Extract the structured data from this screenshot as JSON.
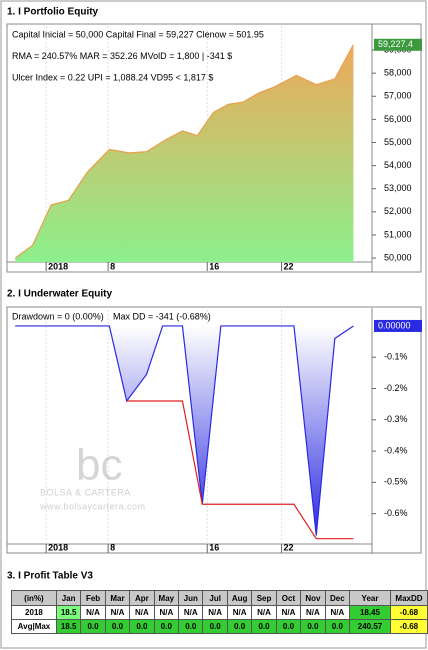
{
  "chart_data": [
    {
      "type": "area",
      "title": "1. I Portfolio Equity",
      "annotations": [
        "Capital Inicial = 50,000   Capital Final = 59,227   Clenow = 501.95",
        "RMA = 240.57%   MAR = 352.26   MVolD = 1,800 | -341 $",
        "Ulcer Index = 0.22   UPI = 1,088.24   VD95 < 1,817 $"
      ],
      "x": [
        0.5,
        1.9,
        3.4,
        4.8,
        6.3,
        8.1,
        9.7,
        11.1,
        12.6,
        14.0,
        15.2,
        16.5,
        17.7,
        18.9,
        20.2,
        21.4,
        23.2,
        24.8,
        26.3,
        27.8
      ],
      "values": [
        50000,
        50550,
        52300,
        52500,
        53700,
        54700,
        54550,
        54600,
        55100,
        55500,
        55300,
        56300,
        56650,
        56750,
        57150,
        57400,
        57900,
        57500,
        57750,
        59227.4
      ],
      "value_labels": [
        null,
        null,
        null,
        null,
        null,
        null,
        null,
        null,
        null,
        null,
        null,
        null,
        null,
        null,
        null,
        null,
        null,
        null,
        null,
        "59,227.4"
      ],
      "color": "#e8a04c",
      "label_color": "#3c9a3c",
      "xlim": [
        0,
        29.3
      ],
      "xticks": [
        {
          "value": 3,
          "label": "2018"
        },
        8,
        16,
        22
      ],
      "ylim": [
        49830,
        60040
      ],
      "yticks": [
        {
          "value": 50000,
          "label": "50,000"
        },
        {
          "value": 51000,
          "label": "51,000"
        },
        {
          "value": 52000,
          "label": "52,000"
        },
        {
          "value": 53000,
          "label": "53,000"
        },
        {
          "value": 54000,
          "label": "54,000"
        },
        {
          "value": 55000,
          "label": "55,000"
        },
        {
          "value": 56000,
          "label": "56,000"
        },
        {
          "value": 57000,
          "label": "57,000"
        },
        {
          "value": 58000,
          "label": "58,000"
        },
        {
          "value": 59000,
          "label": "59,000"
        }
      ],
      "grid": "x"
    },
    {
      "type": "line",
      "title": "2. I Underwater Equity",
      "x": [
        0.5,
        8.1,
        9.5,
        11.1,
        12.4,
        14.0,
        15.6,
        17.1,
        23.0,
        24.8,
        26.3,
        27.8
      ],
      "series": [
        {
          "name": "Drawdown = 0 (0.00%)",
          "color": "#2a2ae0",
          "fill": true,
          "values": [
            0,
            0,
            -0.24,
            -0.155,
            0,
            0,
            -0.57,
            0,
            0,
            -0.67,
            -0.04,
            0
          ],
          "value_labels": [
            null,
            null,
            null,
            null,
            null,
            null,
            null,
            null,
            null,
            null,
            null,
            "0.00000"
          ]
        },
        {
          "name": "Max DD = -341 (-0.68%)",
          "color": "#e02020",
          "values": [
            null,
            null,
            -0.24,
            -0.24,
            -0.24,
            -0.24,
            -0.57,
            -0.57,
            -0.57,
            -0.68,
            -0.68,
            -0.68
          ]
        }
      ],
      "watermark": [
        "bc",
        "BOLSA & CARTERA",
        "www.bolsaycartera.com"
      ],
      "xlim": [
        0,
        29.3
      ],
      "xticks": [
        {
          "value": 3,
          "label": "2018"
        },
        8,
        16,
        22
      ],
      "ylim": [
        -0.697,
        0.051
      ],
      "yticks": [
        {
          "value": -0.1,
          "label": "-0.1%"
        },
        {
          "value": -0.2,
          "label": "-0.2%"
        },
        {
          "value": -0.3,
          "label": "-0.3%"
        },
        {
          "value": -0.4,
          "label": "-0.4%"
        },
        {
          "value": -0.5,
          "label": "-0.5%"
        },
        {
          "value": -0.6,
          "label": "-0.6%"
        }
      ],
      "grid": "x"
    }
  ],
  "table": {
    "title": "3. I Profit Table V3",
    "header": [
      "(in%)",
      "Jan",
      "Feb",
      "Mar",
      "Apr",
      "May",
      "Jun",
      "Jul",
      "Aug",
      "Sep",
      "Oct",
      "Nov",
      "Dec",
      "Year",
      "MaxDD"
    ],
    "rows": [
      [
        "2018",
        "18.5",
        "N/A",
        "N/A",
        "N/A",
        "N/A",
        "N/A",
        "N/A",
        "N/A",
        "N/A",
        "N/A",
        "N/A",
        "N/A",
        "18.45",
        "-0.68"
      ],
      [
        "Avg|Max",
        "18.5",
        "0.0",
        "0.0",
        "0.0",
        "0.0",
        "0.0",
        "0.0",
        "0.0",
        "0.0",
        "0.0",
        "0.0",
        "0.0",
        "240.57",
        "-0.68"
      ]
    ]
  }
}
